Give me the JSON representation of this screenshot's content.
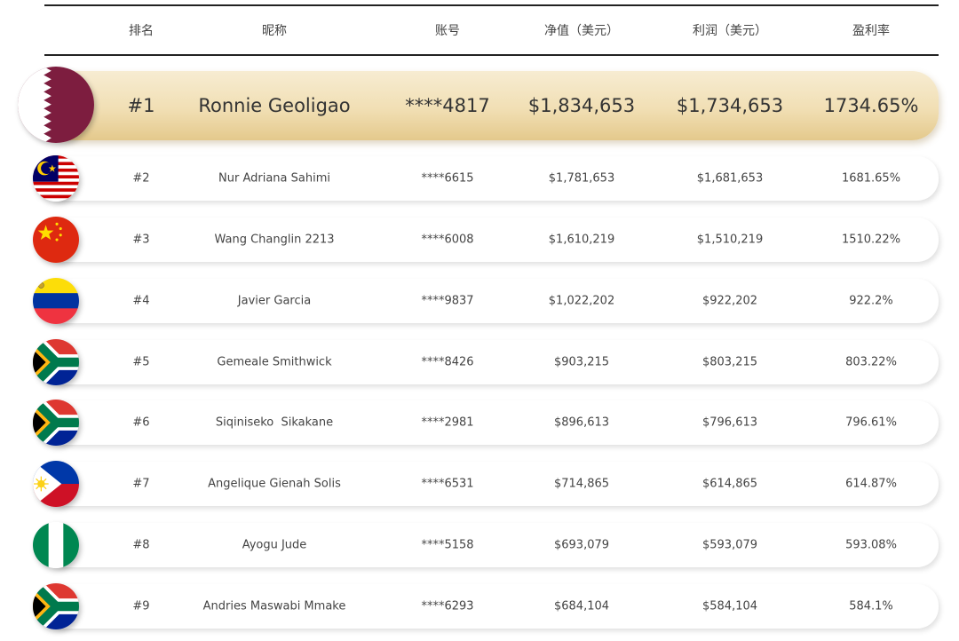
{
  "table": {
    "header": [
      "排名",
      "昵称",
      "账号",
      "净值（美元）",
      "利润（美元）",
      "盈利率"
    ],
    "rows": [
      [
        "#1",
        "Ronnie Geoligao",
        "****4817",
        "$1,834,653",
        "$1,734,653",
        "1734.65%"
      ],
      [
        "#2",
        "Nur Adriana Sahimi",
        "****6615",
        "$1,781,653",
        "$1,681,653",
        "1681.65%"
      ],
      [
        "#3",
        "Wang Changlin 2213",
        "****6008",
        "$1,610,219",
        "$1,510,219",
        "1510.22%"
      ],
      [
        "#4",
        "Javier Garcia",
        "****9837",
        "$1,022,202",
        "$922,202",
        "922.2%"
      ],
      [
        "#5",
        "Gemeale Smithwick",
        "****8426",
        "$903,215",
        "$803,215",
        "803.22%"
      ],
      [
        "#6",
        "Siqiniseko  Sikakane",
        "****2981",
        "$896,613",
        "$796,613",
        "796.61%"
      ],
      [
        "#7",
        "Angelique Gienah Solis",
        "****6531",
        "$714,865",
        "$614,865",
        "614.87%"
      ],
      [
        "#8",
        "Ayogu Jude",
        "****5158",
        "$693,079",
        "$593,079",
        "593.08%"
      ],
      [
        "#9",
        "Andries Maswabi Mmake",
        "****6293",
        "$684,104",
        "$584,104",
        "584.1%"
      ]
    ]
  }
}
